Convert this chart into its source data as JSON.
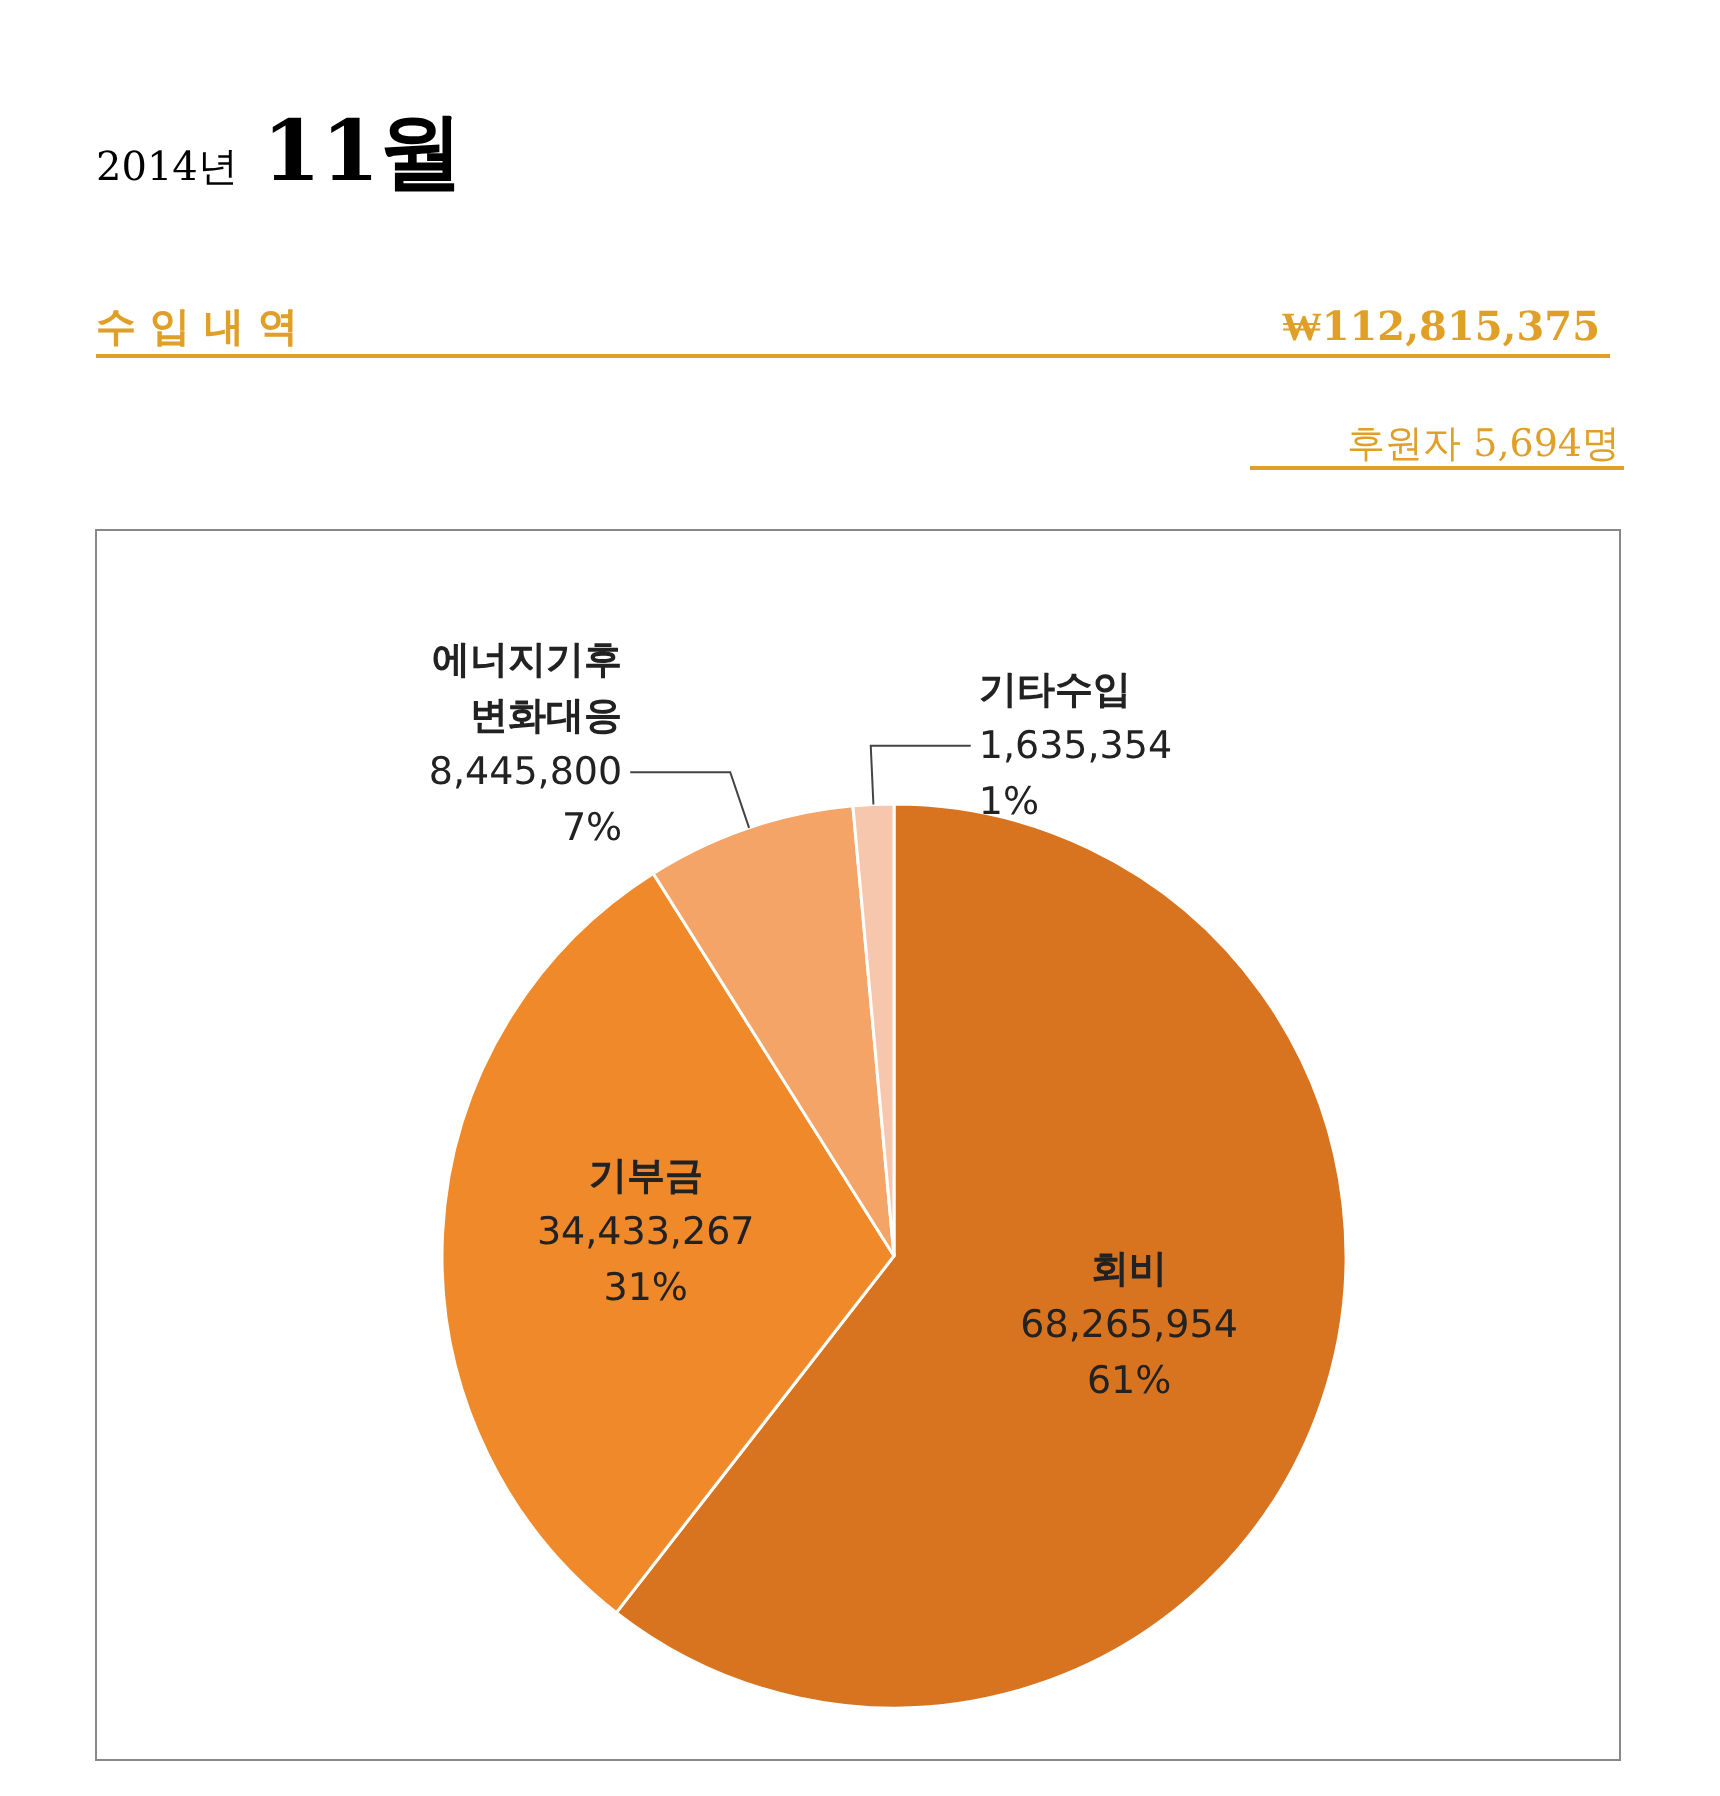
{
  "chart_data": {
    "type": "pie",
    "title": "2014년 11월",
    "subtitle": "수 입 내 역",
    "annotations": [
      "₩112,815,375",
      "후원자 5,694명"
    ],
    "categories": [
      "회비",
      "기부금",
      "에너지기후변화대응",
      "기타수입"
    ],
    "values": [
      68265954,
      34433267,
      8445800,
      1635354
    ],
    "value_labels": [
      "68,265,954 61%",
      "34,433,267 31%",
      "8,445,800 7%",
      "1,635,354 1%"
    ],
    "colors": [
      "#d8741f",
      "#f0892a",
      "#f4a466",
      "#f7c7ad"
    ]
  }
}
